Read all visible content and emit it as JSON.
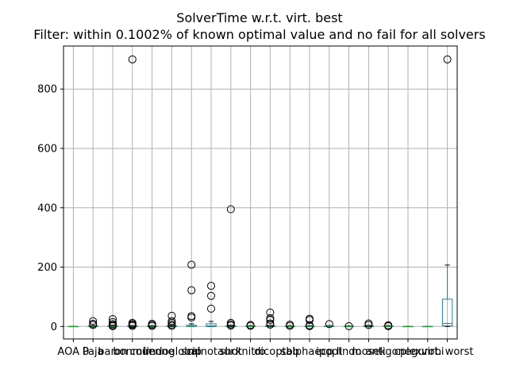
{
  "chart_data": {
    "type": "box",
    "title": "SolverTime w.r.t. virt. best",
    "subtitle": "Filter: within 0.1002% of known optimal value and no fail for all solvers",
    "xlabel": "",
    "ylabel": "",
    "ylim": [
      -42,
      945
    ],
    "yticks": [
      0,
      200,
      400,
      600,
      800
    ],
    "grid": true,
    "categories": [
      "AOA 0",
      "Paja",
      "baron",
      "bonmin",
      "couenne",
      "lindoglobal",
      "scip",
      "minotaur",
      "shot",
      "knitro",
      "dicopt",
      "sbb",
      "alphaecp",
      "ipopt",
      "lindo",
      "mosek",
      "antigone",
      "cplex",
      "gurobi",
      "virt. worst"
    ],
    "boxes": [
      {
        "q1": 0,
        "median": 0,
        "q3": 0.3,
        "whislo": 0,
        "whishi": 0.8,
        "fliers": []
      },
      {
        "q1": 0,
        "median": 0.5,
        "q3": 1.5,
        "whislo": 0,
        "whishi": 3,
        "fliers": [
          5,
          9,
          18
        ]
      },
      {
        "q1": 0,
        "median": 0.5,
        "q3": 2,
        "whislo": 0,
        "whishi": 4,
        "fliers": [
          1,
          4,
          8,
          15,
          25
        ]
      },
      {
        "q1": 0,
        "median": 0.5,
        "q3": 2,
        "whislo": 0,
        "whishi": 3,
        "fliers": [
          2,
          5,
          8,
          12,
          900
        ]
      },
      {
        "q1": 0,
        "median": 0.5,
        "q3": 1.5,
        "whislo": 0,
        "whishi": 3,
        "fliers": [
          2,
          5,
          9
        ]
      },
      {
        "q1": 0,
        "median": 0.5,
        "q3": 2,
        "whislo": 0,
        "whishi": 4,
        "fliers": [
          2,
          6,
          12,
          18,
          36
        ]
      },
      {
        "q1": 0,
        "median": 1,
        "q3": 4,
        "whislo": 0,
        "whishi": 9,
        "fliers": [
          30,
          35,
          122,
          208
        ]
      },
      {
        "q1": 0,
        "median": 2,
        "q3": 9,
        "whislo": 0,
        "whishi": 17,
        "fliers": [
          60,
          103,
          137
        ]
      },
      {
        "q1": 0,
        "median": 0.5,
        "q3": 2,
        "whislo": 0,
        "whishi": 4,
        "fliers": [
          3,
          7,
          12,
          395
        ]
      },
      {
        "q1": 0,
        "median": 0.5,
        "q3": 1.5,
        "whislo": 0,
        "whishi": 3,
        "fliers": [
          2,
          5
        ]
      },
      {
        "q1": 0,
        "median": 0.5,
        "q3": 2,
        "whislo": 0,
        "whishi": 4,
        "fliers": [
          6,
          10,
          22,
          28,
          47
        ]
      },
      {
        "q1": 0,
        "median": 0.5,
        "q3": 1.5,
        "whislo": 0,
        "whishi": 3,
        "fliers": [
          2,
          6
        ]
      },
      {
        "q1": 0,
        "median": 0.5,
        "q3": 1.5,
        "whislo": 0,
        "whishi": 3,
        "fliers": [
          1,
          4,
          22,
          26
        ]
      },
      {
        "q1": 0,
        "median": 0.5,
        "q3": 1.5,
        "whislo": 0,
        "whishi": 3,
        "fliers": [
          8
        ]
      },
      {
        "q1": 0,
        "median": 0.3,
        "q3": 1,
        "whislo": 0,
        "whishi": 2,
        "fliers": [
          1
        ]
      },
      {
        "q1": 0,
        "median": 0.5,
        "q3": 2,
        "whislo": 0,
        "whishi": 4,
        "fliers": [
          5,
          10
        ]
      },
      {
        "q1": 0,
        "median": 0.5,
        "q3": 1.5,
        "whislo": 0,
        "whishi": 3,
        "fliers": [
          1,
          4
        ]
      },
      {
        "q1": 0,
        "median": 0,
        "q3": 0.3,
        "whislo": 0,
        "whishi": 0.8,
        "fliers": []
      },
      {
        "q1": 0,
        "median": 0,
        "q3": 0.3,
        "whislo": 0,
        "whishi": 0.8,
        "fliers": []
      },
      {
        "q1": 2,
        "median": 10,
        "q3": 92,
        "whislo": 0,
        "whishi": 207,
        "fliers": [
          900
        ]
      }
    ],
    "colors": {
      "box": "#1f77b4",
      "median": "#2ca02c",
      "flier": "#000000",
      "grid": "#b0b0b0"
    }
  }
}
